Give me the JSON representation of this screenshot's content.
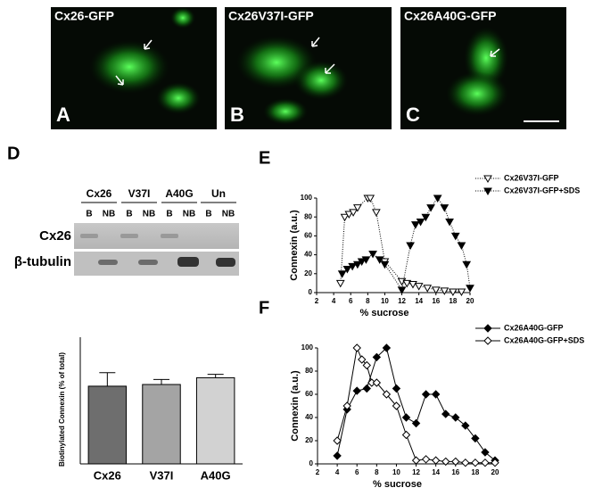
{
  "panels": [
    {
      "letter": "A",
      "label": "Cx26-GFP"
    },
    {
      "letter": "B",
      "label": "Cx26V37I-GFP"
    },
    {
      "letter": "C",
      "label": "Cx26A40G-GFP"
    }
  ],
  "blot": {
    "letter": "D",
    "groups": [
      "Cx26",
      "V37I",
      "A40G",
      "Un"
    ],
    "lanes": [
      "B",
      "NB",
      "B",
      "NB",
      "B",
      "NB",
      "B",
      "NB"
    ],
    "rows": [
      "Cx26",
      "β-tubulin"
    ]
  },
  "chart_data": [
    {
      "type": "bar",
      "ylabel": "Biotinylated Connexin (% of total)",
      "categories": [
        "Cx26",
        "V37I",
        "A40G"
      ],
      "values": [
        46,
        47,
        51
      ],
      "errors": [
        8,
        3,
        2
      ],
      "colors": [
        "#6e6e6e",
        "#a4a4a4",
        "#d2d2d2"
      ],
      "ylim": [
        0,
        75
      ]
    },
    {
      "type": "line",
      "letter": "E",
      "xlabel": "% sucrose",
      "ylabel": "Connexin (a.u.)",
      "xlim": [
        2,
        20
      ],
      "xticks": [
        2,
        4,
        6,
        8,
        10,
        12,
        14,
        16,
        18,
        20
      ],
      "ylim": [
        0,
        100
      ],
      "yticks": [
        0,
        20,
        40,
        60,
        80,
        100
      ],
      "series": [
        {
          "name": "Cx26V37I-GFP",
          "marker": "triangle-down",
          "filled": false,
          "dash": "dotted",
          "color": "#000000",
          "x": [
            4.8,
            5.3,
            5.8,
            6.3,
            6.8,
            8.0,
            8.3,
            9.0,
            10.0,
            12.0,
            12.6,
            13.3,
            14.0,
            15.0,
            16.0,
            17.0,
            18.0,
            19.0
          ],
          "values": [
            10,
            80,
            83,
            85,
            90,
            100,
            100,
            85,
            33,
            12,
            10,
            9,
            7,
            5,
            3,
            2,
            1,
            1
          ]
        },
        {
          "name": "Cx26V37I-GFP+SDS",
          "marker": "triangle-down",
          "filled": true,
          "dash": "dotted",
          "color": "#000000",
          "x": [
            5,
            5.6,
            6.2,
            6.8,
            7.3,
            7.8,
            8.6,
            9.4,
            10,
            12,
            13,
            13.6,
            14.2,
            14.8,
            15.4,
            16.2,
            17,
            17.6,
            18.3,
            19,
            19.6,
            20
          ],
          "values": [
            20,
            25,
            28,
            30,
            33,
            35,
            41,
            35,
            30,
            3,
            50,
            72,
            75,
            80,
            90,
            100,
            90,
            75,
            60,
            50,
            30,
            5
          ]
        }
      ]
    },
    {
      "type": "line",
      "letter": "F",
      "xlabel": "% sucrose",
      "ylabel": "Connexin (a.u.)",
      "xlim": [
        2,
        20
      ],
      "xticks": [
        2,
        4,
        6,
        8,
        10,
        12,
        14,
        16,
        18,
        20
      ],
      "ylim": [
        0,
        100
      ],
      "yticks": [
        0,
        20,
        40,
        60,
        80,
        100
      ],
      "series": [
        {
          "name": "Cx26A40G-GFP",
          "marker": "diamond",
          "filled": true,
          "dash": "solid",
          "color": "#000000",
          "x": [
            4,
            5,
            6,
            7,
            8,
            9,
            10,
            11,
            12,
            13,
            14,
            15,
            16,
            17,
            18,
            19,
            20
          ],
          "values": [
            7,
            47,
            63,
            65,
            92,
            100,
            65,
            40,
            35,
            60,
            60,
            43,
            40,
            33,
            22,
            10,
            3
          ]
        },
        {
          "name": "Cx26A40G-GFP+SDS",
          "marker": "diamond",
          "filled": false,
          "dash": "solid",
          "color": "#000000",
          "x": [
            4,
            5,
            6,
            6.5,
            7,
            7.5,
            8,
            9,
            10,
            11,
            12,
            13,
            14,
            15,
            16,
            17,
            18,
            19,
            20
          ],
          "values": [
            20,
            50,
            100,
            90,
            85,
            70,
            70,
            60,
            50,
            25,
            3,
            4,
            3,
            2,
            2,
            1,
            1,
            1,
            1
          ]
        }
      ]
    }
  ]
}
